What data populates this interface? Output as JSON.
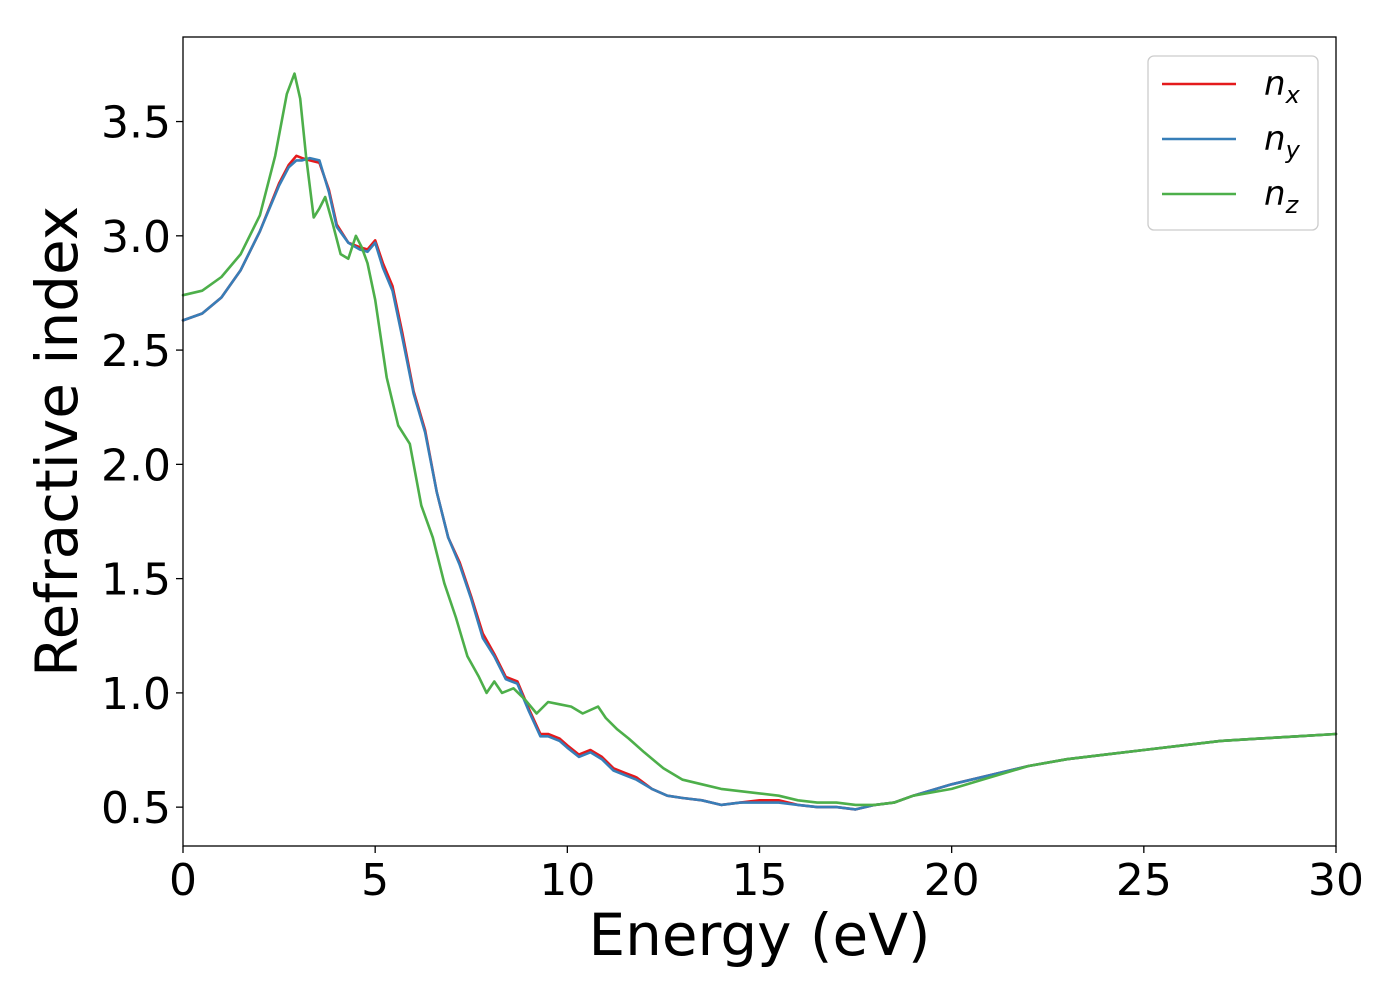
{
  "chart_data": {
    "type": "line",
    "xlabel": "Energy (eV)",
    "ylabel": "Refractive index",
    "xlim": [
      0,
      30
    ],
    "ylim": [
      0.33,
      3.87
    ],
    "xticks": [
      0,
      5,
      10,
      15,
      20,
      25,
      30
    ],
    "xtick_labels": [
      "0",
      "5",
      "10",
      "15",
      "20",
      "25",
      "30"
    ],
    "yticks": [
      0.5,
      1.0,
      1.5,
      2.0,
      2.5,
      3.0,
      3.5
    ],
    "ytick_labels": [
      "0.5",
      "1.0",
      "1.5",
      "2.0",
      "2.5",
      "3.0",
      "3.5"
    ],
    "grid": false,
    "legend_position": "top-right",
    "series": [
      {
        "name": "n",
        "subscript": "x",
        "color": "#e41a1c",
        "x": [
          0,
          0.5,
          1,
          1.5,
          2,
          2.5,
          2.75,
          2.95,
          3.1,
          3.3,
          3.55,
          3.8,
          4.0,
          4.3,
          4.6,
          4.8,
          5.0,
          5.2,
          5.45,
          5.7,
          6.0,
          6.3,
          6.6,
          6.9,
          7.2,
          7.5,
          7.8,
          8.1,
          8.4,
          8.7,
          9.0,
          9.3,
          9.5,
          9.8,
          10.0,
          10.3,
          10.6,
          10.9,
          11.2,
          11.5,
          11.8,
          12.2,
          12.6,
          13.0,
          13.5,
          14.0,
          14.5,
          15.0,
          15.5,
          16.0,
          16.5,
          17.0,
          17.5,
          18.0,
          18.5,
          19.0,
          20.0,
          21.0,
          22.0,
          23.0,
          24.0,
          25.0,
          26.0,
          27.0,
          28.0,
          29.0,
          30.0
        ],
        "y": [
          2.63,
          2.66,
          2.73,
          2.85,
          3.02,
          3.23,
          3.31,
          3.35,
          3.34,
          3.33,
          3.32,
          3.2,
          3.05,
          2.97,
          2.95,
          2.94,
          2.98,
          2.88,
          2.78,
          2.58,
          2.32,
          2.15,
          1.88,
          1.68,
          1.57,
          1.42,
          1.26,
          1.17,
          1.07,
          1.05,
          0.93,
          0.82,
          0.82,
          0.8,
          0.77,
          0.73,
          0.75,
          0.72,
          0.67,
          0.65,
          0.63,
          0.58,
          0.55,
          0.54,
          0.53,
          0.51,
          0.52,
          0.53,
          0.53,
          0.51,
          0.5,
          0.5,
          0.49,
          0.51,
          0.52,
          0.55,
          0.6,
          0.64,
          0.68,
          0.71,
          0.73,
          0.75,
          0.77,
          0.79,
          0.8,
          0.81,
          0.82
        ]
      },
      {
        "name": "n",
        "subscript": "y",
        "color": "#377eb8",
        "x": [
          0,
          0.5,
          1,
          1.5,
          2,
          2.5,
          2.75,
          2.95,
          3.1,
          3.3,
          3.55,
          3.8,
          4.0,
          4.3,
          4.6,
          4.8,
          5.0,
          5.2,
          5.45,
          5.7,
          6.0,
          6.3,
          6.6,
          6.9,
          7.2,
          7.5,
          7.8,
          8.1,
          8.4,
          8.7,
          9.0,
          9.3,
          9.5,
          9.8,
          10.0,
          10.3,
          10.6,
          10.9,
          11.2,
          11.5,
          11.8,
          12.2,
          12.6,
          13.0,
          13.5,
          14.0,
          14.5,
          15.0,
          15.5,
          16.0,
          16.5,
          17.0,
          17.5,
          18.0,
          18.5,
          19.0,
          20.0,
          21.0,
          22.0,
          23.0,
          24.0,
          25.0,
          26.0,
          27.0,
          28.0,
          29.0,
          30.0
        ],
        "y": [
          2.63,
          2.66,
          2.73,
          2.85,
          3.02,
          3.22,
          3.3,
          3.33,
          3.33,
          3.34,
          3.33,
          3.19,
          3.04,
          2.97,
          2.94,
          2.93,
          2.97,
          2.86,
          2.76,
          2.56,
          2.31,
          2.14,
          1.88,
          1.68,
          1.56,
          1.41,
          1.24,
          1.16,
          1.06,
          1.04,
          0.92,
          0.81,
          0.81,
          0.79,
          0.76,
          0.72,
          0.74,
          0.71,
          0.66,
          0.64,
          0.62,
          0.58,
          0.55,
          0.54,
          0.53,
          0.51,
          0.52,
          0.52,
          0.52,
          0.51,
          0.5,
          0.5,
          0.49,
          0.51,
          0.52,
          0.55,
          0.6,
          0.64,
          0.68,
          0.71,
          0.73,
          0.75,
          0.77,
          0.79,
          0.8,
          0.81,
          0.82
        ]
      },
      {
        "name": "n",
        "subscript": "z",
        "color": "#4daf4a",
        "x": [
          0,
          0.5,
          1,
          1.5,
          2,
          2.4,
          2.7,
          2.9,
          3.05,
          3.2,
          3.4,
          3.55,
          3.7,
          3.9,
          4.1,
          4.3,
          4.5,
          4.65,
          4.8,
          5.0,
          5.3,
          5.6,
          5.9,
          6.2,
          6.5,
          6.8,
          7.1,
          7.4,
          7.7,
          7.9,
          8.1,
          8.3,
          8.6,
          8.9,
          9.2,
          9.5,
          9.8,
          10.1,
          10.4,
          10.8,
          11.0,
          11.3,
          11.6,
          12.0,
          12.5,
          13.0,
          13.5,
          14.0,
          14.5,
          15.0,
          15.5,
          16.0,
          16.5,
          17.0,
          17.5,
          18.0,
          18.5,
          19.0,
          20.0,
          21.0,
          22.0,
          23.0,
          24.0,
          25.0,
          26.0,
          27.0,
          28.0,
          29.0,
          30.0
        ],
        "y": [
          2.74,
          2.76,
          2.82,
          2.92,
          3.09,
          3.35,
          3.62,
          3.71,
          3.6,
          3.35,
          3.08,
          3.12,
          3.17,
          3.05,
          2.92,
          2.9,
          3.0,
          2.95,
          2.88,
          2.72,
          2.38,
          2.17,
          2.09,
          1.82,
          1.68,
          1.48,
          1.33,
          1.16,
          1.07,
          1.0,
          1.05,
          1.0,
          1.02,
          0.97,
          0.91,
          0.96,
          0.95,
          0.94,
          0.91,
          0.94,
          0.89,
          0.84,
          0.8,
          0.74,
          0.67,
          0.62,
          0.6,
          0.58,
          0.57,
          0.56,
          0.55,
          0.53,
          0.52,
          0.52,
          0.51,
          0.51,
          0.52,
          0.55,
          0.58,
          0.63,
          0.68,
          0.71,
          0.73,
          0.75,
          0.77,
          0.79,
          0.8,
          0.81,
          0.82
        ]
      }
    ]
  }
}
